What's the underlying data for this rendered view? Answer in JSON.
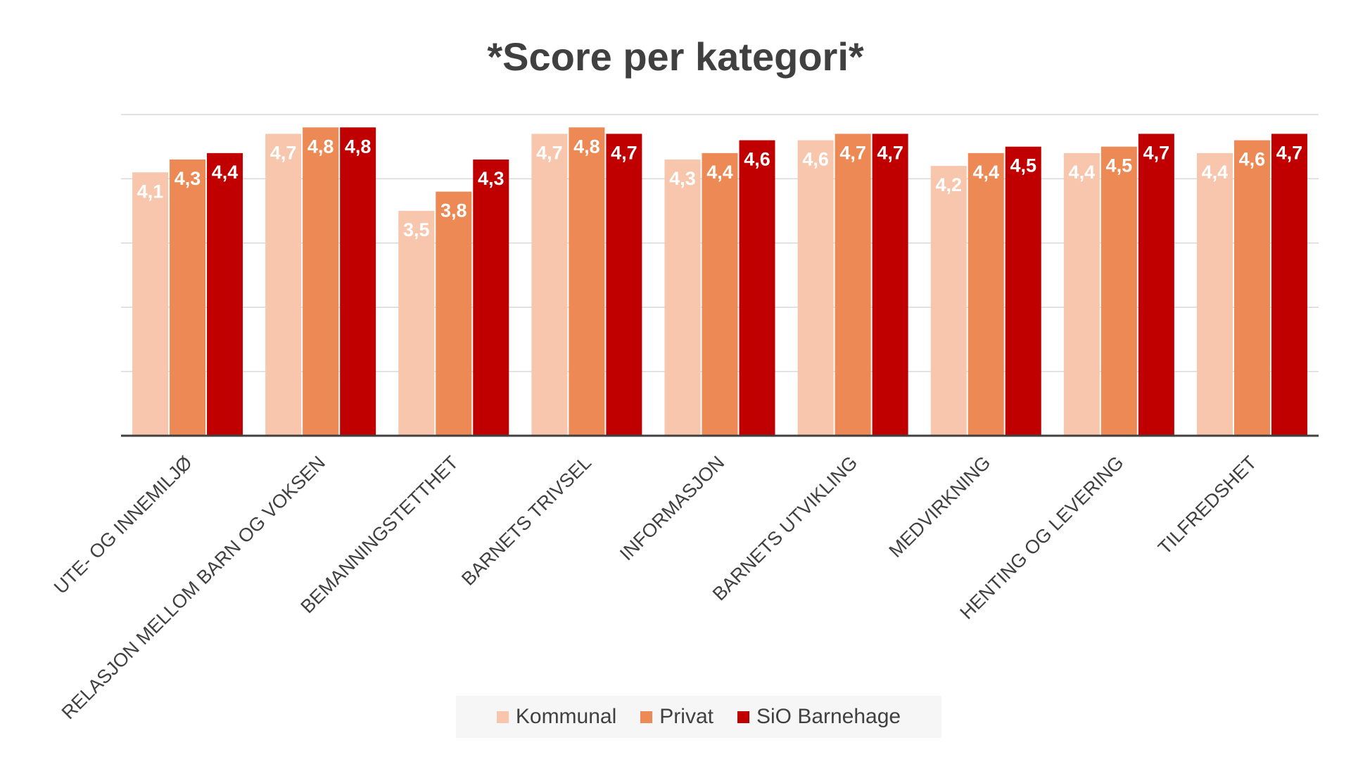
{
  "chart_data": {
    "type": "bar",
    "title": "*Score per kategori*",
    "xlabel": "",
    "ylabel": "",
    "ylim": [
      0,
      5
    ],
    "grid": true,
    "legend_position": "bottom",
    "categories": [
      "UTE- OG INNEMILJØ",
      "RELASJON MELLOM BARN OG VOKSEN",
      "BEMANNINGSTETTHET",
      "BARNETS TRIVSEL",
      "INFORMASJON",
      "BARNETS UTVIKLING",
      "MEDVIRKNING",
      "HENTING OG LEVERING",
      "TILFREDSHET"
    ],
    "series": [
      {
        "name": "Kommunal",
        "color": "#f7c6ad",
        "values": [
          4.1,
          4.7,
          3.5,
          4.7,
          4.3,
          4.6,
          4.2,
          4.4,
          4.4
        ],
        "labels": [
          "4,1",
          "4,7",
          "3,5",
          "4,7",
          "4,3",
          "4,6",
          "4,2",
          "4,4",
          "4,4"
        ]
      },
      {
        "name": "Privat",
        "color": "#ec8954",
        "values": [
          4.3,
          4.8,
          3.8,
          4.8,
          4.4,
          4.7,
          4.4,
          4.5,
          4.6
        ],
        "labels": [
          "4,3",
          "4,8",
          "3,8",
          "4,8",
          "4,4",
          "4,7",
          "4,4",
          "4,5",
          "4,6"
        ]
      },
      {
        "name": "SiO Barnehage",
        "color": "#c00000",
        "values": [
          4.4,
          4.8,
          4.3,
          4.7,
          4.6,
          4.7,
          4.5,
          4.7,
          4.7
        ],
        "labels": [
          "4,4",
          "4,8",
          "4,3",
          "4,7",
          "4,6",
          "4,7",
          "4,5",
          "4,7",
          "4,7"
        ]
      }
    ]
  }
}
